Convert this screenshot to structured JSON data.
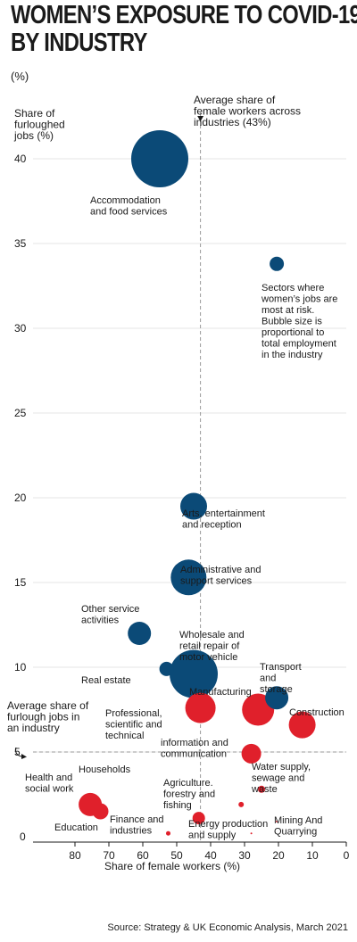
{
  "title_lines": [
    "WOMEN’S EXPOSURE TO COVID-19",
    "BY INDUSTRY"
  ],
  "subtitle": "(%)",
  "source": "Source: Strategy & UK Economic Analysis, March 2021",
  "chart_data": {
    "type": "scatter",
    "subtype": "bubble",
    "xlabel": "Share of female workers (%)",
    "ylabel_lines": [
      "Share of",
      "furloughed",
      "jobs (%)"
    ],
    "x_axis_reversed": true,
    "xlim": [
      80,
      0
    ],
    "ylim": [
      0,
      42
    ],
    "x_ticks": [
      80,
      70,
      60,
      50,
      40,
      30,
      20,
      10,
      0
    ],
    "y_ticks": [
      0,
      5,
      10,
      15,
      20,
      25,
      30,
      35,
      40
    ],
    "grid": true,
    "colors": {
      "at_risk": "#0b4a77",
      "other": "#e0202b",
      "reference": "#9a9a9a"
    },
    "reference_lines": [
      {
        "axis": "x",
        "value": 43,
        "label_lines": [
          "Average share of",
          "female workers across",
          "industries (43%)"
        ]
      },
      {
        "axis": "y",
        "value": 5,
        "label_lines": [
          "Average share of",
          "furlough jobs in",
          "an industry"
        ]
      }
    ],
    "legend_note_lines": [
      "Sectors where",
      "women’s jobs are",
      "most at risk.",
      "Bubble size is",
      "proportional to",
      "total employment",
      "in the industry"
    ],
    "points": [
      {
        "label_lines": [
          "Accommodation",
          "and food services"
        ],
        "x": 55,
        "y": 40,
        "size": 32,
        "group": "at_risk"
      },
      {
        "label_lines": [
          "Arts, entertainment",
          "and reception"
        ],
        "x": 45,
        "y": 19.5,
        "size": 15,
        "group": "at_risk"
      },
      {
        "label_lines": [
          "Administrative and",
          "support services"
        ],
        "x": 46.5,
        "y": 15.3,
        "size": 20,
        "group": "at_risk"
      },
      {
        "label_lines": [
          "Other service",
          "activities"
        ],
        "x": 61,
        "y": 12,
        "size": 13,
        "group": "at_risk"
      },
      {
        "label_lines": [
          "Wholesale and",
          "retail repair of",
          "motor vehicle"
        ],
        "x": 45,
        "y": 9.6,
        "size": 27,
        "group": "at_risk"
      },
      {
        "label_lines": [
          "Real estate"
        ],
        "x": 53,
        "y": 9.9,
        "size": 8,
        "group": "at_risk"
      },
      {
        "label_lines": [
          "Transport",
          "and",
          "storage"
        ],
        "x": 20.5,
        "y": 8.2,
        "size": 13,
        "group": "at_risk"
      },
      {
        "label_lines": [
          "Professional,",
          "scientific and",
          "technical"
        ],
        "x": 43,
        "y": 7.6,
        "size": 17,
        "group": "other"
      },
      {
        "label_lines": [
          "Manufacturing"
        ],
        "x": 26,
        "y": 7.5,
        "size": 18,
        "group": "other"
      },
      {
        "label_lines": [
          "Construction"
        ],
        "x": 13,
        "y": 6.6,
        "size": 15,
        "group": "other"
      },
      {
        "label_lines": [
          "information and",
          "communication"
        ],
        "x": 28,
        "y": 4.9,
        "size": 11,
        "group": "other"
      },
      {
        "label_lines": [
          "Water supply,",
          "sewage and",
          "waste"
        ],
        "x": 25,
        "y": 2.8,
        "size": 4,
        "group": "other"
      },
      {
        "label_lines": [
          "Health and",
          "social work"
        ],
        "x": 75.5,
        "y": 1.9,
        "size": 13,
        "group": "other"
      },
      {
        "label_lines": [
          "Education"
        ],
        "x": 72.5,
        "y": 1.5,
        "size": 9,
        "group": "other"
      },
      {
        "label_lines": [
          "Agriculture.",
          "forestry and",
          "fishing"
        ],
        "x": 31,
        "y": 1.9,
        "size": 3,
        "group": "other"
      },
      {
        "label_lines": [
          "Finance and",
          "industries"
        ],
        "x": 43.5,
        "y": 1.1,
        "size": 7,
        "group": "other"
      },
      {
        "label_lines": [
          "Finance and",
          "industries"
        ],
        "x": 52.5,
        "y": 0.2,
        "size": 2.5,
        "group": "other"
      },
      {
        "label_lines": [
          "Energy production",
          "and supply"
        ],
        "x": 28,
        "y": 0.2,
        "size": 1,
        "group": "other"
      },
      {
        "label_lines": [
          "Mining And",
          "Quarrying"
        ],
        "x": 20.5,
        "y": 0.9,
        "size": 1,
        "group": "other"
      },
      {
        "label_lines": [
          "Households"
        ],
        "x": 70,
        "y": 3.9,
        "size": 0,
        "group": "other"
      }
    ]
  }
}
